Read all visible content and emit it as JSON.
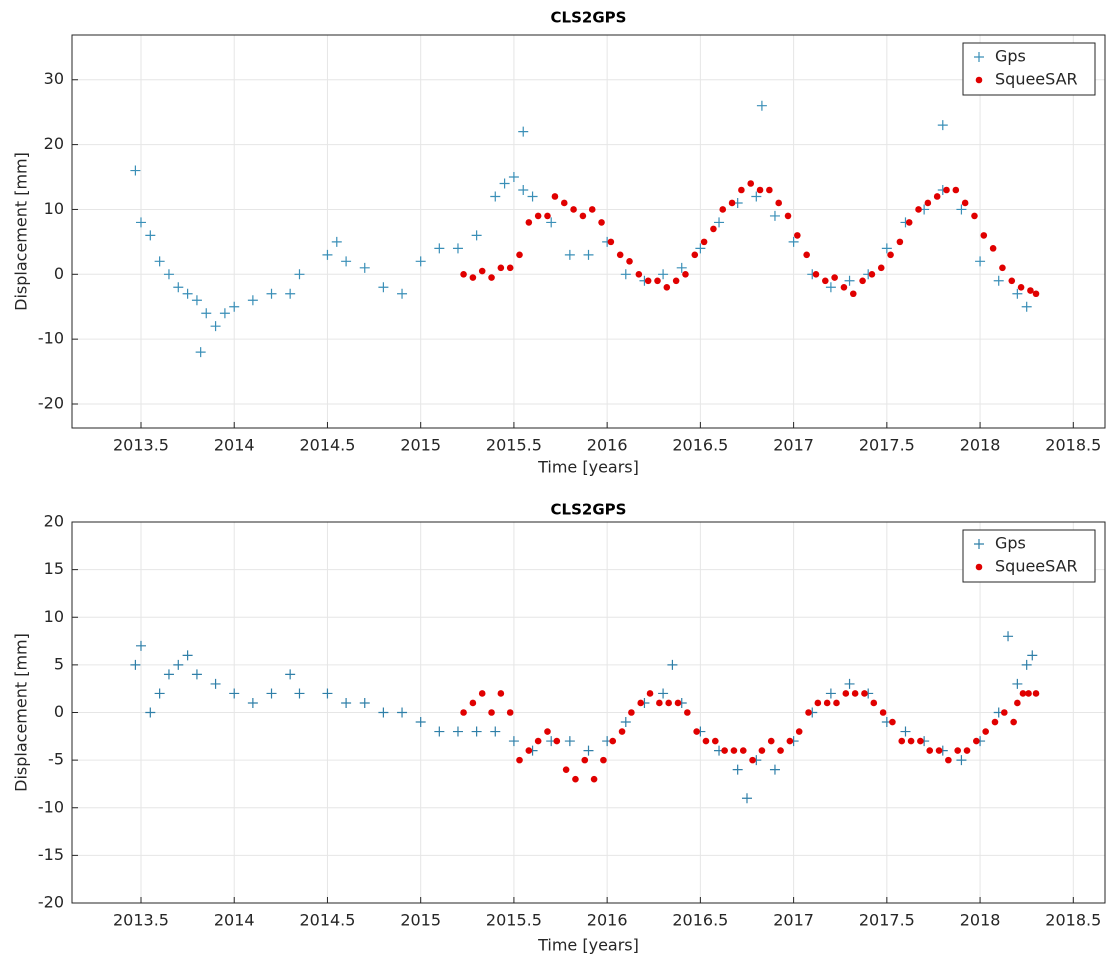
{
  "chart_data": [
    {
      "type": "scatter",
      "title": "CLS2GPS",
      "x_label": "Time [years]",
      "y_label": "Displacement [mm]",
      "xlim": [
        2013.13,
        2018.67
      ],
      "xticks": [
        2013.5,
        2014,
        2014.5,
        2015,
        2015.5,
        2016,
        2016.5,
        2017,
        2017.5,
        2018,
        2018.5
      ],
      "ylim": [
        -23.7,
        36.9
      ],
      "yticks": [
        -20,
        -10,
        0,
        10,
        20,
        30
      ],
      "grid": true,
      "legend": "upper right",
      "series": [
        {
          "name": "Gps",
          "color": "#3a8fb7",
          "marker": "+",
          "x": [
            2013.47,
            2013.5,
            2013.55,
            2013.6,
            2013.65,
            2013.7,
            2013.75,
            2013.8,
            2013.82,
            2013.85,
            2013.9,
            2013.95,
            2014.0,
            2014.1,
            2014.2,
            2014.3,
            2014.35,
            2014.5,
            2014.55,
            2014.6,
            2014.7,
            2014.8,
            2014.9,
            2015.0,
            2015.1,
            2015.2,
            2015.3,
            2015.4,
            2015.45,
            2015.5,
            2015.55,
            2015.55,
            2015.6,
            2015.7,
            2015.8,
            2015.9,
            2016.0,
            2016.1,
            2016.2,
            2016.3,
            2016.4,
            2016.5,
            2016.6,
            2016.7,
            2016.8,
            2016.83,
            2016.9,
            2017.0,
            2017.1,
            2017.2,
            2017.3,
            2017.4,
            2017.5,
            2017.6,
            2017.7,
            2017.8,
            2017.8,
            2017.9,
            2018.0,
            2018.1,
            2018.2,
            2018.25
          ],
          "values": [
            16,
            8,
            6,
            2,
            0,
            -2,
            -3,
            -4,
            -12,
            -6,
            -8,
            -6,
            -5,
            -4,
            -3,
            -3,
            0,
            3,
            5,
            2,
            1,
            -2,
            -3,
            2,
            4,
            4,
            6,
            12,
            14,
            15,
            13,
            22,
            12,
            8,
            3,
            3,
            5,
            0,
            -1,
            0,
            1,
            4,
            8,
            11,
            12,
            26,
            9,
            5,
            0,
            -2,
            -1,
            0,
            4,
            8,
            10,
            13,
            23,
            10,
            2,
            -1,
            -3,
            -5
          ]
        },
        {
          "name": "SqueeSAR",
          "color": "#e00000",
          "marker": "dot",
          "x": [
            2015.23,
            2015.28,
            2015.33,
            2015.38,
            2015.43,
            2015.48,
            2015.53,
            2015.58,
            2015.63,
            2015.68,
            2015.72,
            2015.77,
            2015.82,
            2015.87,
            2015.92,
            2015.97,
            2016.02,
            2016.07,
            2016.12,
            2016.17,
            2016.22,
            2016.27,
            2016.32,
            2016.37,
            2016.42,
            2016.47,
            2016.52,
            2016.57,
            2016.62,
            2016.67,
            2016.72,
            2016.77,
            2016.82,
            2016.87,
            2016.92,
            2016.97,
            2017.02,
            2017.07,
            2017.12,
            2017.17,
            2017.22,
            2017.27,
            2017.32,
            2017.37,
            2017.42,
            2017.47,
            2017.52,
            2017.57,
            2017.62,
            2017.67,
            2017.72,
            2017.77,
            2017.82,
            2017.87,
            2017.92,
            2017.97,
            2018.02,
            2018.07,
            2018.12,
            2018.17,
            2018.22,
            2018.27,
            2018.3
          ],
          "values": [
            0,
            -0.5,
            0.5,
            -0.5,
            1,
            1,
            3,
            8,
            9,
            9,
            12,
            11,
            10,
            9,
            10,
            8,
            5,
            3,
            2,
            0,
            -1,
            -1,
            -2,
            -1,
            0,
            3,
            5,
            7,
            10,
            11,
            13,
            14,
            13,
            13,
            11,
            9,
            6,
            3,
            0,
            -1,
            -0.5,
            -2,
            -3,
            -1,
            0,
            1,
            3,
            5,
            8,
            10,
            11,
            12,
            13,
            13,
            11,
            9,
            6,
            4,
            1,
            -1,
            -2,
            -2.5,
            -3
          ]
        }
      ]
    },
    {
      "type": "scatter",
      "title": "CLS2GPS",
      "x_label": "Time [years]",
      "y_label": "Displacement [mm]",
      "xlim": [
        2013.13,
        2018.67
      ],
      "xticks": [
        2013.5,
        2014,
        2014.5,
        2015,
        2015.5,
        2016,
        2016.5,
        2017,
        2017.5,
        2018,
        2018.5
      ],
      "ylim": [
        -20,
        20
      ],
      "yticks": [
        -20,
        -15,
        -10,
        -5,
        0,
        5,
        10,
        15,
        20
      ],
      "grid": true,
      "legend": "upper right",
      "series": [
        {
          "name": "Gps",
          "color": "#2f7fa8",
          "marker": "+",
          "x": [
            2013.47,
            2013.5,
            2013.55,
            2013.6,
            2013.65,
            2013.7,
            2013.75,
            2013.8,
            2013.9,
            2014.0,
            2014.1,
            2014.2,
            2014.3,
            2014.35,
            2014.5,
            2014.6,
            2014.7,
            2014.8,
            2014.9,
            2015.0,
            2015.1,
            2015.2,
            2015.3,
            2015.4,
            2015.5,
            2015.6,
            2015.7,
            2015.8,
            2015.9,
            2016.0,
            2016.1,
            2016.2,
            2016.3,
            2016.35,
            2016.4,
            2016.5,
            2016.6,
            2016.7,
            2016.75,
            2016.8,
            2016.9,
            2017.0,
            2017.1,
            2017.2,
            2017.3,
            2017.4,
            2017.5,
            2017.6,
            2017.7,
            2017.8,
            2017.9,
            2018.0,
            2018.1,
            2018.15,
            2018.2,
            2018.25,
            2018.28
          ],
          "values": [
            5,
            7,
            0,
            2,
            4,
            5,
            6,
            4,
            3,
            2,
            1,
            2,
            4,
            2,
            2,
            1,
            1,
            0,
            0,
            -1,
            -2,
            -2,
            -2,
            -2,
            -3,
            -4,
            -3,
            -3,
            -4,
            -3,
            -1,
            1,
            2,
            5,
            1,
            -2,
            -4,
            -6,
            -9,
            -5,
            -6,
            -3,
            0,
            2,
            3,
            2,
            -1,
            -2,
            -3,
            -4,
            -5,
            -3,
            0,
            8,
            3,
            5,
            6
          ]
        },
        {
          "name": "SqueeSAR",
          "color": "#e00000",
          "marker": "dot",
          "x": [
            2015.23,
            2015.28,
            2015.33,
            2015.38,
            2015.43,
            2015.48,
            2015.53,
            2015.58,
            2015.63,
            2015.68,
            2015.73,
            2015.78,
            2015.83,
            2015.88,
            2015.93,
            2015.98,
            2016.03,
            2016.08,
            2016.13,
            2016.18,
            2016.23,
            2016.28,
            2016.33,
            2016.38,
            2016.43,
            2016.48,
            2016.53,
            2016.58,
            2016.63,
            2016.68,
            2016.73,
            2016.78,
            2016.83,
            2016.88,
            2016.93,
            2016.98,
            2017.03,
            2017.08,
            2017.13,
            2017.18,
            2017.23,
            2017.28,
            2017.33,
            2017.38,
            2017.43,
            2017.48,
            2017.53,
            2017.58,
            2017.63,
            2017.68,
            2017.73,
            2017.78,
            2017.83,
            2017.88,
            2017.93,
            2017.98,
            2018.03,
            2018.08,
            2018.13,
            2018.18,
            2018.2,
            2018.23,
            2018.26,
            2018.3
          ],
          "values": [
            0,
            1,
            2,
            0,
            2,
            0,
            -5,
            -4,
            -3,
            -2,
            -3,
            -6,
            -7,
            -5,
            -7,
            -5,
            -3,
            -2,
            0,
            1,
            2,
            1,
            1,
            1,
            0,
            -2,
            -3,
            -3,
            -4,
            -4,
            -4,
            -5,
            -4,
            -3,
            -4,
            -3,
            -2,
            0,
            1,
            1,
            1,
            2,
            2,
            2,
            1,
            0,
            -1,
            -3,
            -3,
            -3,
            -4,
            -4,
            -5,
            -4,
            -4,
            -3,
            -2,
            -1,
            0,
            -1,
            1,
            2,
            2,
            2
          ]
        }
      ]
    }
  ]
}
